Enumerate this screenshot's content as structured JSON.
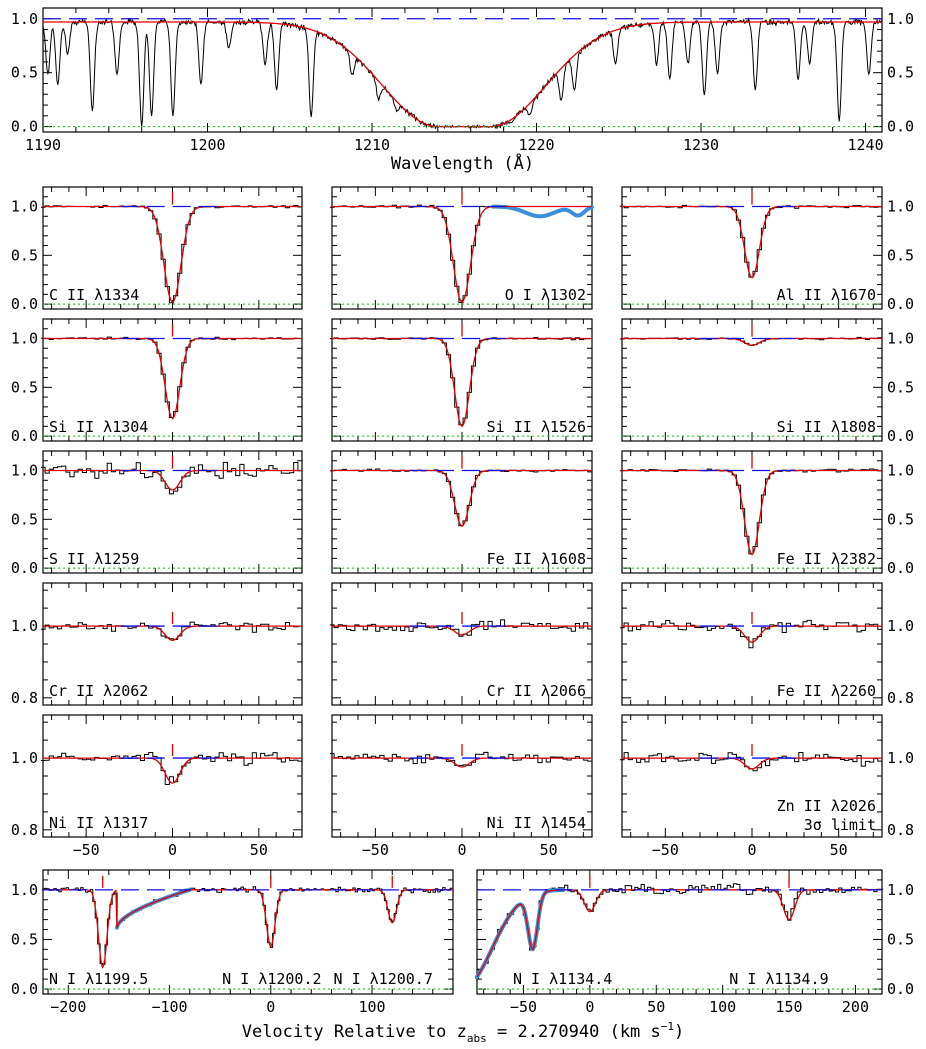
{
  "figure": {
    "xlabel_velocity": "Velocity Relative to z",
    "xlabel_sub": "abs",
    "xlabel_tail": " = 2.270940 (km s",
    "xlabel_sup": "−1",
    "xlabel_close": ")",
    "colors": {
      "data": "#000000",
      "fit": "#e00000",
      "continuum": "#1010e0",
      "zero_level": "#00c000",
      "blend": "#3a8fd8"
    }
  },
  "chart_data": [
    {
      "id": "lya",
      "type": "line",
      "title": "",
      "xlabel": "Wavelength (Å)",
      "ylabel": "",
      "xlim": [
        1190,
        1241
      ],
      "ylim": [
        -0.05,
        1.1
      ],
      "xticks": [
        1190,
        1200,
        1210,
        1220,
        1230,
        1240
      ],
      "yticks": [
        0.0,
        0.5,
        1.0
      ],
      "continuum": 1.0,
      "zero_level": 0.0,
      "damped_fit": {
        "center": 1215.6,
        "core_halfwidth": 1.6,
        "wing_scale": 5.0,
        "max_level": 0.97
      },
      "absorption_lines": [
        {
          "x": 1190.3,
          "depth": 0.5
        },
        {
          "x": 1190.9,
          "depth": 0.6
        },
        {
          "x": 1191.5,
          "depth": 0.3
        },
        {
          "x": 1193.0,
          "depth": 0.85
        },
        {
          "x": 1194.5,
          "depth": 0.5
        },
        {
          "x": 1196.0,
          "depth": 1.0
        },
        {
          "x": 1196.6,
          "depth": 0.9
        },
        {
          "x": 1197.9,
          "depth": 0.9
        },
        {
          "x": 1199.6,
          "depth": 0.6
        },
        {
          "x": 1201.3,
          "depth": 0.25
        },
        {
          "x": 1203.5,
          "depth": 0.4
        },
        {
          "x": 1204.2,
          "depth": 0.65
        },
        {
          "x": 1206.3,
          "depth": 0.9
        },
        {
          "x": 1208.8,
          "depth": 0.3
        },
        {
          "x": 1210.4,
          "depth": 0.4
        },
        {
          "x": 1211.5,
          "depth": 0.4
        },
        {
          "x": 1218.5,
          "depth": 0.4
        },
        {
          "x": 1219.6,
          "depth": 0.5
        },
        {
          "x": 1221.5,
          "depth": 0.55
        },
        {
          "x": 1222.3,
          "depth": 0.5
        },
        {
          "x": 1224.8,
          "depth": 0.35
        },
        {
          "x": 1227.3,
          "depth": 0.4
        },
        {
          "x": 1228.1,
          "depth": 0.55
        },
        {
          "x": 1229.2,
          "depth": 0.4
        },
        {
          "x": 1230.2,
          "depth": 0.7
        },
        {
          "x": 1231.0,
          "depth": 0.5
        },
        {
          "x": 1233.3,
          "depth": 0.65
        },
        {
          "x": 1235.9,
          "depth": 0.55
        },
        {
          "x": 1236.6,
          "depth": 0.4
        },
        {
          "x": 1238.4,
          "depth": 0.95
        },
        {
          "x": 1240.2,
          "depth": 0.5
        }
      ]
    },
    {
      "id": "CII1334",
      "type": "line",
      "label": "C II λ1334",
      "xlim": [
        -75,
        75
      ],
      "ylim": [
        -0.05,
        1.2
      ],
      "yticks": [
        0.0,
        0.5,
        1.0
      ],
      "depth": 0.98,
      "width": 7,
      "noise": 0.012
    },
    {
      "id": "OI1302",
      "type": "line",
      "label": "O I λ1302",
      "xlim": [
        -75,
        75
      ],
      "ylim": [
        -0.05,
        1.2
      ],
      "yticks": [
        0.0,
        0.5,
        1.0
      ],
      "depth": 0.98,
      "width": 7,
      "noise": 0.012,
      "blend": true
    },
    {
      "id": "AlII1670",
      "type": "line",
      "label": "Al II λ1670",
      "xlim": [
        -75,
        75
      ],
      "ylim": [
        -0.05,
        1.2
      ],
      "yticks": [
        0.0,
        0.5,
        1.0
      ],
      "depth": 0.73,
      "width": 6,
      "noise": 0.012
    },
    {
      "id": "SiII1304",
      "type": "line",
      "label": "Si II λ1304",
      "xlim": [
        -75,
        75
      ],
      "ylim": [
        -0.05,
        1.2
      ],
      "yticks": [
        0.0,
        0.5,
        1.0
      ],
      "depth": 0.82,
      "width": 6,
      "noise": 0.01
    },
    {
      "id": "SiII1526",
      "type": "line",
      "label": "Si II λ1526",
      "xlim": [
        -75,
        75
      ],
      "ylim": [
        -0.05,
        1.2
      ],
      "yticks": [
        0.0,
        0.5,
        1.0
      ],
      "depth": 0.9,
      "width": 6,
      "noise": 0.01
    },
    {
      "id": "SiII1808",
      "type": "line",
      "label": "Si II λ1808",
      "xlim": [
        -75,
        75
      ],
      "ylim": [
        -0.05,
        1.2
      ],
      "yticks": [
        0.0,
        0.5,
        1.0
      ],
      "depth": 0.07,
      "width": 6,
      "noise": 0.01
    },
    {
      "id": "SII1259",
      "type": "line",
      "label": "S II λ1259",
      "xlim": [
        -75,
        75
      ],
      "ylim": [
        -0.05,
        1.2
      ],
      "yticks": [
        0.0,
        0.5,
        1.0
      ],
      "depth": 0.2,
      "width": 6,
      "noise": 0.07
    },
    {
      "id": "FeII1608",
      "type": "line",
      "label": "Fe II λ1608",
      "xlim": [
        -75,
        75
      ],
      "ylim": [
        -0.05,
        1.2
      ],
      "yticks": [
        0.0,
        0.5,
        1.0
      ],
      "depth": 0.57,
      "width": 6,
      "noise": 0.015
    },
    {
      "id": "FeII2382",
      "type": "line",
      "label": "Fe II λ2382",
      "xlim": [
        -75,
        75
      ],
      "ylim": [
        -0.05,
        1.2
      ],
      "yticks": [
        0.0,
        0.5,
        1.0
      ],
      "depth": 0.86,
      "width": 6,
      "noise": 0.015
    },
    {
      "id": "CrII2062",
      "type": "line",
      "label": "Cr II λ2062",
      "xlim": [
        -75,
        75
      ],
      "ylim": [
        0.78,
        1.12
      ],
      "yticks": [
        0.8,
        1.0
      ],
      "depth": 0.04,
      "width": 6,
      "noise": 0.012
    },
    {
      "id": "CrII2066",
      "type": "line",
      "label": "Cr II λ2066",
      "xlim": [
        -75,
        75
      ],
      "ylim": [
        0.78,
        1.12
      ],
      "yticks": [
        0.8,
        1.0
      ],
      "depth": 0.025,
      "width": 6,
      "noise": 0.015
    },
    {
      "id": "FeII2260",
      "type": "line",
      "label": "Fe II λ2260",
      "xlim": [
        -75,
        75
      ],
      "ylim": [
        0.78,
        1.12
      ],
      "yticks": [
        0.8,
        1.0
      ],
      "depth": 0.045,
      "width": 6,
      "noise": 0.015
    },
    {
      "id": "NiII1317",
      "type": "line",
      "label": "Ni II λ1317",
      "xlim": [
        -75,
        75
      ],
      "ylim": [
        0.78,
        1.12
      ],
      "yticks": [
        0.8,
        1.0
      ],
      "xticks": [
        -50,
        0,
        50
      ],
      "depth": 0.07,
      "width": 6,
      "noise": 0.015
    },
    {
      "id": "NiII1454",
      "type": "line",
      "label": "Ni II λ1454",
      "xlim": [
        -75,
        75
      ],
      "ylim": [
        0.78,
        1.12
      ],
      "yticks": [
        0.8,
        1.0
      ],
      "xticks": [
        -50,
        0,
        50
      ],
      "depth": 0.025,
      "width": 6,
      "noise": 0.015
    },
    {
      "id": "ZnII2026",
      "type": "line",
      "label": "Zn II λ2026",
      "label2": "3σ limit",
      "xlim": [
        -75,
        75
      ],
      "ylim": [
        0.78,
        1.12
      ],
      "yticks": [
        0.8,
        1.0
      ],
      "xticks": [
        -50,
        0,
        50
      ],
      "depth": 0.03,
      "width": 6,
      "noise": 0.015
    },
    {
      "id": "NI1200",
      "type": "line",
      "xlim": [
        -225,
        180
      ],
      "ylim": [
        -0.05,
        1.2
      ],
      "yticks": [
        0.0,
        0.5,
        1.0
      ],
      "xticks": [
        -200,
        -100,
        0,
        100
      ],
      "labels": [
        "N I λ1199.5",
        "N I λ1200.2",
        "N I λ1200.7"
      ],
      "components": [
        {
          "v": -166,
          "depth": 0.78,
          "width": 6
        },
        {
          "v": 0,
          "depth": 0.57,
          "width": 6
        },
        {
          "v": 120,
          "depth": 0.33,
          "width": 6
        }
      ],
      "noise": 0.025
    },
    {
      "id": "NI1134",
      "type": "line",
      "xlim": [
        -85,
        220
      ],
      "ylim": [
        -0.05,
        1.2
      ],
      "yticks": [
        0.0,
        0.5,
        1.0
      ],
      "xticks": [
        -50,
        0,
        50,
        100,
        150,
        200
      ],
      "labels": [
        "N I λ1134.4",
        "N I λ1134.9"
      ],
      "components": [
        {
          "v": 0,
          "depth": 0.22,
          "width": 6
        },
        {
          "v": 150,
          "depth": 0.3,
          "width": 6
        }
      ],
      "noise": 0.05
    }
  ]
}
